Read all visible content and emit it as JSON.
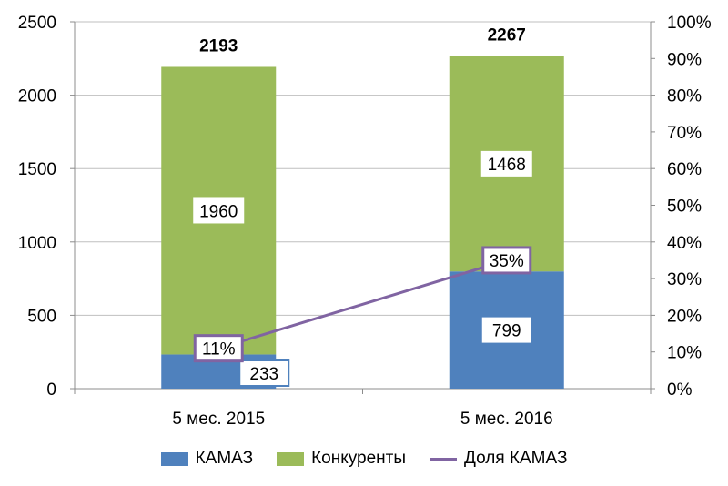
{
  "chart_data": {
    "type": "bar",
    "stacked": true,
    "categories": [
      "5 мес. 2015",
      "5 мес. 2016"
    ],
    "series": [
      {
        "name": "КАМАЗ",
        "values": [
          233,
          799
        ],
        "color": "#4f81bd"
      },
      {
        "name": "Конкуренты",
        "values": [
          1960,
          1468
        ],
        "color": "#9bbb59"
      }
    ],
    "totals": [
      2193,
      2267
    ],
    "line_series": {
      "name": "Доля КАМАЗ",
      "values": [
        11,
        35
      ],
      "labels": [
        "11%",
        "35%"
      ],
      "axis": "right",
      "color": "#8064a2"
    },
    "ylim": [
      0,
      2500
    ],
    "yticks": [
      0,
      500,
      1000,
      1500,
      2000,
      2500
    ],
    "y2lim": [
      0,
      100
    ],
    "y2ticks": [
      "0%",
      "10%",
      "20%",
      "30%",
      "40%",
      "50%",
      "60%",
      "70%",
      "80%",
      "90%",
      "100%"
    ],
    "grid": true,
    "legend_position": "bottom"
  },
  "legend": [
    "КАМАЗ",
    "Конкуренты",
    "Доля КАМАЗ"
  ]
}
